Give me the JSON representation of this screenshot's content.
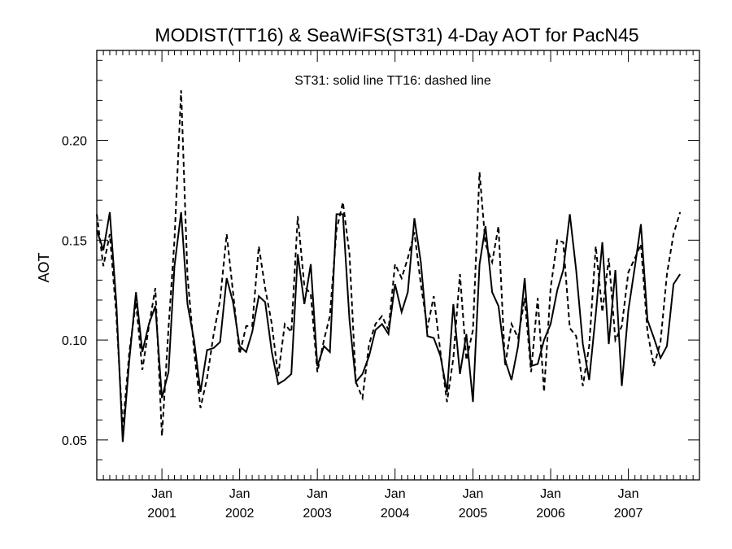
{
  "chart_data": {
    "type": "line",
    "title": "MODIST(TT16) & SeaWiFS(ST31) 4-Day AOT for PacN45",
    "ylabel": "AOT",
    "annotation": "ST31: solid line   TT16: dashed line",
    "x_unit": "month",
    "xlim": [
      "2000-03-01",
      "2007-12-01"
    ],
    "ylim": [
      0.03,
      0.245
    ],
    "y_ticks": [
      0.05,
      0.1,
      0.15,
      0.2
    ],
    "y_tick_labels": [
      "0.05",
      "0.10",
      "0.15",
      "0.20"
    ],
    "x_ticks": [
      {
        "date": "2001-01-01",
        "label_month": "Jan",
        "label_year": "2001"
      },
      {
        "date": "2002-01-01",
        "label_month": "Jan",
        "label_year": "2002"
      },
      {
        "date": "2003-01-01",
        "label_month": "Jan",
        "label_year": "2003"
      },
      {
        "date": "2004-01-01",
        "label_month": "Jan",
        "label_year": "2004"
      },
      {
        "date": "2005-01-01",
        "label_month": "Jan",
        "label_year": "2005"
      },
      {
        "date": "2006-01-01",
        "label_month": "Jan",
        "label_year": "2006"
      },
      {
        "date": "2007-01-01",
        "label_month": "Jan",
        "label_year": "2007"
      }
    ],
    "grid": false,
    "series": [
      {
        "name": "ST31",
        "style": "solid",
        "color": "#000000",
        "points": [
          [
            "2000-03-01",
            0.155
          ],
          [
            "2000-04-01",
            0.145
          ],
          [
            "2000-05-01",
            0.164
          ],
          [
            "2000-06-01",
            0.118
          ],
          [
            "2000-07-01",
            0.049
          ],
          [
            "2000-08-01",
            0.09
          ],
          [
            "2000-09-01",
            0.124
          ],
          [
            "2000-10-01",
            0.094
          ],
          [
            "2000-11-01",
            0.108
          ],
          [
            "2000-12-01",
            0.117
          ],
          [
            "2001-01-01",
            0.071
          ],
          [
            "2001-02-01",
            0.084
          ],
          [
            "2001-03-01",
            0.137
          ],
          [
            "2001-04-01",
            0.164
          ],
          [
            "2001-05-01",
            0.118
          ],
          [
            "2001-06-01",
            0.1
          ],
          [
            "2001-07-01",
            0.074
          ],
          [
            "2001-08-01",
            0.095
          ],
          [
            "2001-09-01",
            0.096
          ],
          [
            "2001-10-01",
            0.099
          ],
          [
            "2001-11-01",
            0.131
          ],
          [
            "2001-12-01",
            0.119
          ],
          [
            "2002-01-01",
            0.097
          ],
          [
            "2002-02-01",
            0.094
          ],
          [
            "2002-03-01",
            0.104
          ],
          [
            "2002-04-01",
            0.122
          ],
          [
            "2002-05-01",
            0.119
          ],
          [
            "2002-06-01",
            0.094
          ],
          [
            "2002-07-01",
            0.078
          ],
          [
            "2002-08-01",
            0.08
          ],
          [
            "2002-09-01",
            0.083
          ],
          [
            "2002-10-01",
            0.143
          ],
          [
            "2002-11-01",
            0.118
          ],
          [
            "2002-12-01",
            0.138
          ],
          [
            "2003-01-01",
            0.087
          ],
          [
            "2003-02-01",
            0.097
          ],
          [
            "2003-03-01",
            0.094
          ],
          [
            "2003-04-01",
            0.163
          ],
          [
            "2003-05-01",
            0.163
          ],
          [
            "2003-06-01",
            0.11
          ],
          [
            "2003-07-01",
            0.079
          ],
          [
            "2003-08-01",
            0.083
          ],
          [
            "2003-09-01",
            0.092
          ],
          [
            "2003-10-01",
            0.105
          ],
          [
            "2003-11-01",
            0.108
          ],
          [
            "2003-12-01",
            0.103
          ],
          [
            "2004-01-01",
            0.128
          ],
          [
            "2004-02-01",
            0.114
          ],
          [
            "2004-03-01",
            0.124
          ],
          [
            "2004-04-01",
            0.161
          ],
          [
            "2004-05-01",
            0.139
          ],
          [
            "2004-06-01",
            0.102
          ],
          [
            "2004-07-01",
            0.101
          ],
          [
            "2004-08-01",
            0.092
          ],
          [
            "2004-09-01",
            0.074
          ],
          [
            "2004-10-01",
            0.118
          ],
          [
            "2004-11-01",
            0.083
          ],
          [
            "2004-12-01",
            0.103
          ],
          [
            "2005-01-01",
            0.069
          ],
          [
            "2005-02-01",
            0.138
          ],
          [
            "2005-03-01",
            0.157
          ],
          [
            "2005-04-01",
            0.124
          ],
          [
            "2005-05-01",
            0.117
          ],
          [
            "2005-06-01",
            0.09
          ],
          [
            "2005-07-01",
            0.08
          ],
          [
            "2005-08-01",
            0.097
          ],
          [
            "2005-09-01",
            0.131
          ],
          [
            "2005-10-01",
            0.087
          ],
          [
            "2005-11-01",
            0.088
          ],
          [
            "2005-12-01",
            0.1
          ],
          [
            "2006-01-01",
            0.108
          ],
          [
            "2006-02-01",
            0.125
          ],
          [
            "2006-03-01",
            0.135
          ],
          [
            "2006-04-01",
            0.163
          ],
          [
            "2006-05-01",
            0.135
          ],
          [
            "2006-06-01",
            0.098
          ],
          [
            "2006-07-01",
            0.08
          ],
          [
            "2006-08-01",
            0.113
          ],
          [
            "2006-09-01",
            0.149
          ],
          [
            "2006-10-01",
            0.098
          ],
          [
            "2006-11-01",
            0.135
          ],
          [
            "2006-12-01",
            0.077
          ],
          [
            "2007-01-01",
            0.115
          ],
          [
            "2007-02-01",
            0.137
          ],
          [
            "2007-03-01",
            0.158
          ],
          [
            "2007-04-01",
            0.11
          ],
          [
            "2007-05-01",
            0.101
          ],
          [
            "2007-06-01",
            0.091
          ],
          [
            "2007-07-01",
            0.097
          ],
          [
            "2007-08-01",
            0.128
          ],
          [
            "2007-09-01",
            0.133
          ]
        ]
      },
      {
        "name": "TT16",
        "style": "dashed",
        "color": "#000000",
        "points": [
          [
            "2000-03-01",
            0.163
          ],
          [
            "2000-04-01",
            0.137
          ],
          [
            "2000-05-01",
            0.153
          ],
          [
            "2000-06-01",
            0.112
          ],
          [
            "2000-07-01",
            0.056
          ],
          [
            "2000-08-01",
            0.094
          ],
          [
            "2000-09-01",
            0.119
          ],
          [
            "2000-10-01",
            0.085
          ],
          [
            "2000-11-01",
            0.107
          ],
          [
            "2000-12-01",
            0.126
          ],
          [
            "2001-01-01",
            0.052
          ],
          [
            "2001-02-01",
            0.106
          ],
          [
            "2001-03-01",
            0.15
          ],
          [
            "2001-04-01",
            0.225
          ],
          [
            "2001-05-01",
            0.132
          ],
          [
            "2001-06-01",
            0.095
          ],
          [
            "2001-07-01",
            0.066
          ],
          [
            "2001-08-01",
            0.081
          ],
          [
            "2001-09-01",
            0.103
          ],
          [
            "2001-10-01",
            0.12
          ],
          [
            "2001-11-01",
            0.153
          ],
          [
            "2001-12-01",
            0.124
          ],
          [
            "2002-01-01",
            0.093
          ],
          [
            "2002-02-01",
            0.107
          ],
          [
            "2002-03-01",
            0.107
          ],
          [
            "2002-04-01",
            0.147
          ],
          [
            "2002-05-01",
            0.126
          ],
          [
            "2002-06-01",
            0.108
          ],
          [
            "2002-07-01",
            0.082
          ],
          [
            "2002-08-01",
            0.108
          ],
          [
            "2002-09-01",
            0.104
          ],
          [
            "2002-10-01",
            0.162
          ],
          [
            "2002-11-01",
            0.127
          ],
          [
            "2002-12-01",
            0.123
          ],
          [
            "2003-01-01",
            0.084
          ],
          [
            "2003-02-01",
            0.1
          ],
          [
            "2003-03-01",
            0.112
          ],
          [
            "2003-04-01",
            0.155
          ],
          [
            "2003-05-01",
            0.169
          ],
          [
            "2003-06-01",
            0.143
          ],
          [
            "2003-07-01",
            0.079
          ],
          [
            "2003-08-01",
            0.071
          ],
          [
            "2003-09-01",
            0.098
          ],
          [
            "2003-10-01",
            0.108
          ],
          [
            "2003-11-01",
            0.112
          ],
          [
            "2003-12-01",
            0.105
          ],
          [
            "2004-01-01",
            0.138
          ],
          [
            "2004-02-01",
            0.131
          ],
          [
            "2004-03-01",
            0.141
          ],
          [
            "2004-04-01",
            0.154
          ],
          [
            "2004-05-01",
            0.128
          ],
          [
            "2004-06-01",
            0.106
          ],
          [
            "2004-07-01",
            0.122
          ],
          [
            "2004-08-01",
            0.094
          ],
          [
            "2004-09-01",
            0.069
          ],
          [
            "2004-10-01",
            0.091
          ],
          [
            "2004-11-01",
            0.133
          ],
          [
            "2004-12-01",
            0.09
          ],
          [
            "2005-01-01",
            0.105
          ],
          [
            "2005-02-01",
            0.184
          ],
          [
            "2005-03-01",
            0.148
          ],
          [
            "2005-04-01",
            0.139
          ],
          [
            "2005-05-01",
            0.157
          ],
          [
            "2005-06-01",
            0.087
          ],
          [
            "2005-07-01",
            0.108
          ],
          [
            "2005-08-01",
            0.101
          ],
          [
            "2005-09-01",
            0.121
          ],
          [
            "2005-10-01",
            0.084
          ],
          [
            "2005-11-01",
            0.121
          ],
          [
            "2005-12-01",
            0.074
          ],
          [
            "2006-01-01",
            0.126
          ],
          [
            "2006-02-01",
            0.15
          ],
          [
            "2006-03-01",
            0.149
          ],
          [
            "2006-04-01",
            0.106
          ],
          [
            "2006-05-01",
            0.102
          ],
          [
            "2006-06-01",
            0.077
          ],
          [
            "2006-07-01",
            0.097
          ],
          [
            "2006-08-01",
            0.147
          ],
          [
            "2006-09-01",
            0.114
          ],
          [
            "2006-10-01",
            0.141
          ],
          [
            "2006-11-01",
            0.1
          ],
          [
            "2006-12-01",
            0.107
          ],
          [
            "2007-01-01",
            0.134
          ],
          [
            "2007-02-01",
            0.141
          ],
          [
            "2007-03-01",
            0.148
          ],
          [
            "2007-04-01",
            0.104
          ],
          [
            "2007-05-01",
            0.087
          ],
          [
            "2007-06-01",
            0.099
          ],
          [
            "2007-07-01",
            0.133
          ],
          [
            "2007-08-01",
            0.153
          ],
          [
            "2007-09-01",
            0.164
          ]
        ]
      }
    ]
  }
}
